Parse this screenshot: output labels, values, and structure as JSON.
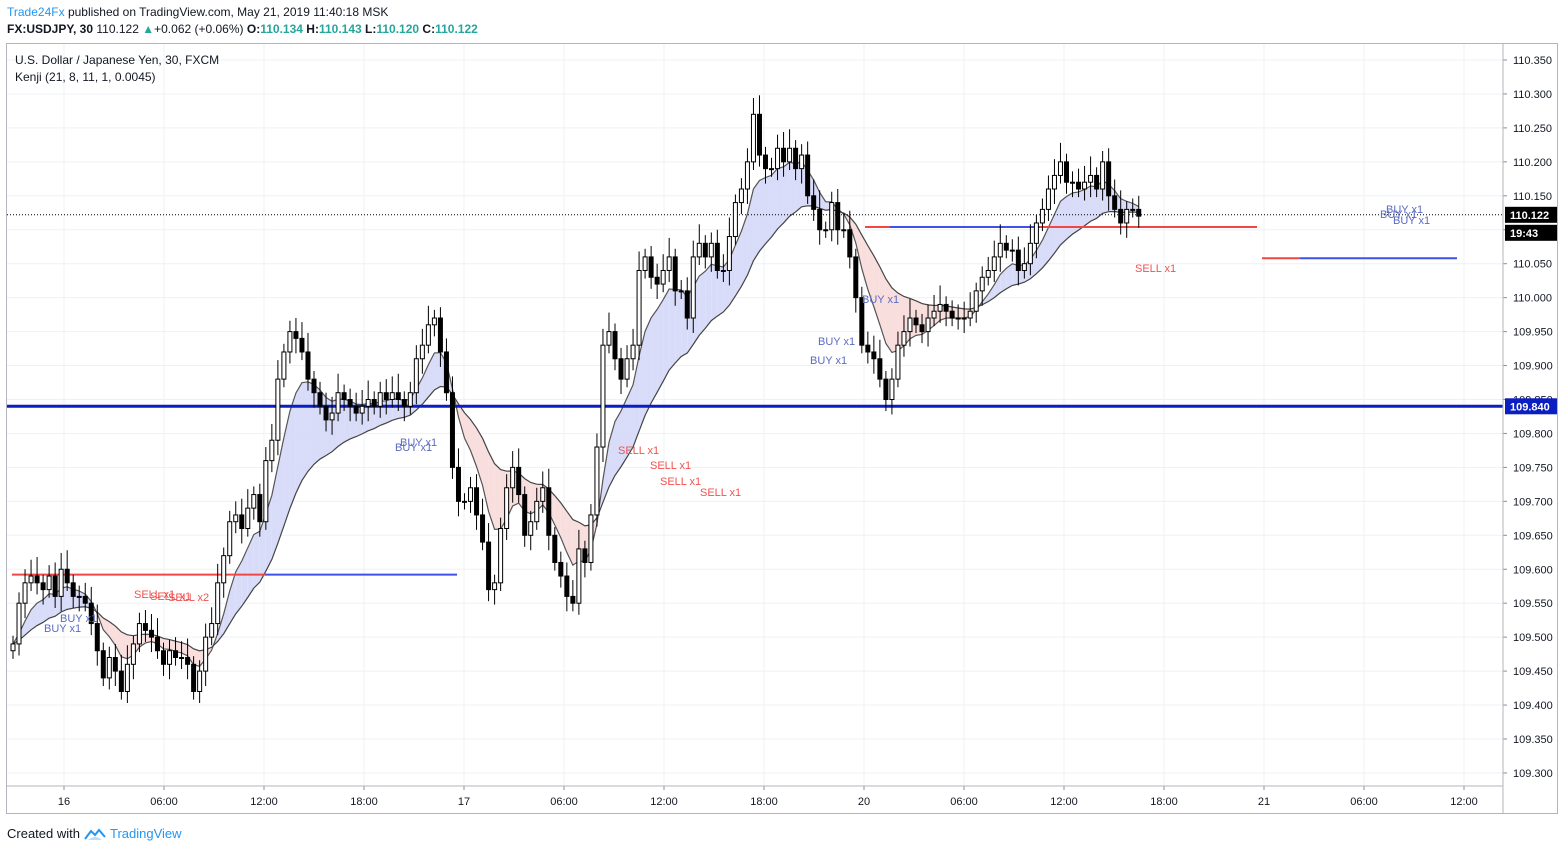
{
  "header": {
    "publisher": "Trade24Fx",
    "published_text": "published on TradingView.com, May 21, 2019 11:40:18 MSK",
    "symbol": "FX:USDJPY, 30",
    "last": "110.122",
    "change": "+0.062 (+0.06%)",
    "open_label": "O:",
    "open": "110.134",
    "high_label": "H:",
    "high": "110.143",
    "low_label": "L:",
    "low": "110.120",
    "close_label": "C:",
    "close": "110.122"
  },
  "legend": {
    "title": "U.S. Dollar / Japanese Yen, 30, FXCM",
    "indicator": "Kenji (21, 8, 11, 1, 0.0045)"
  },
  "price_axis": {
    "ticks": [
      "110.350",
      "110.300",
      "110.250",
      "110.200",
      "110.150",
      "110.100",
      "110.050",
      "110.000",
      "109.950",
      "109.900",
      "109.850",
      "109.800",
      "109.750",
      "109.700",
      "109.650",
      "109.600",
      "109.550",
      "109.500",
      "109.450",
      "109.400",
      "109.350",
      "109.300"
    ],
    "last_price_badge": "110.122",
    "countdown_badge": "19:43",
    "level_badge": "109.840"
  },
  "time_axis": {
    "ticks": [
      "16",
      "06:00",
      "12:00",
      "18:00",
      "17",
      "06:00",
      "12:00",
      "18:00",
      "20",
      "06:00",
      "12:00",
      "18:00",
      "21",
      "06:00",
      "12:00"
    ]
  },
  "signals": {
    "buy": [
      "BUY x1",
      "BUY x1",
      "BUY x1",
      "BUY x1",
      "BUY x1",
      "BUY x1",
      "BUY x1",
      "BUY x1",
      "BUY x1",
      "BUY x1"
    ],
    "sell": [
      "SELL x1",
      "SELL x1",
      "SELL x2",
      "SELL x1",
      "SELL x1",
      "SELL x1",
      "SELL x1",
      "SELL x1"
    ]
  },
  "colors": {
    "bull_candle": "#ffffff",
    "bear_candle": "#000000",
    "buy_band": "#d5d8f7",
    "sell_band": "#f8dada",
    "green_band": "#d9f2d9",
    "buy_level": "#3f51e8",
    "sell_level": "#f04646",
    "key_level": "#0b1ec0",
    "buy_text": "#5c6bc0",
    "sell_text": "#ef5350"
  },
  "footer": {
    "created_with": "Created with",
    "brand": "TradingView"
  },
  "chart_data": {
    "type": "candlestick",
    "title": "U.S. Dollar / Japanese Yen, 30, FXCM",
    "ylim": [
      109.28,
      110.38
    ],
    "key_level": 109.84,
    "last_price": 110.122,
    "close_series": [
      109.49,
      109.55,
      109.58,
      109.59,
      109.58,
      109.57,
      109.59,
      109.56,
      109.6,
      109.58,
      109.56,
      109.56,
      109.55,
      109.52,
      109.48,
      109.44,
      109.47,
      109.45,
      109.42,
      109.46,
      109.49,
      109.52,
      109.51,
      109.5,
      109.48,
      109.46,
      109.48,
      109.47,
      109.47,
      109.46,
      109.42,
      109.45,
      109.5,
      109.52,
      109.58,
      109.62,
      109.67,
      109.68,
      109.66,
      109.69,
      109.71,
      109.67,
      109.76,
      109.79,
      109.88,
      109.92,
      109.95,
      109.94,
      109.92,
      109.88,
      109.86,
      109.84,
      109.82,
      109.83,
      109.86,
      109.85,
      109.84,
      109.83,
      109.84,
      109.85,
      109.84,
      109.86,
      109.85,
      109.86,
      109.85,
      109.84,
      109.86,
      109.91,
      109.93,
      109.96,
      109.97,
      109.92,
      109.86,
      109.75,
      109.7,
      109.7,
      109.72,
      109.68,
      109.64,
      109.57,
      109.58,
      109.66,
      109.72,
      109.75,
      109.71,
      109.65,
      109.67,
      109.7,
      109.72,
      109.65,
      109.61,
      109.59,
      109.56,
      109.55,
      109.63,
      109.61,
      109.68,
      109.78,
      109.93,
      109.95,
      109.91,
      109.88,
      109.91,
      109.93,
      110.04,
      110.06,
      110.03,
      110.02,
      110.04,
      110.06,
      110.01,
      110.01,
      109.97,
      110.06,
      110.08,
      110.06,
      110.08,
      110.04,
      110.04,
      110.09,
      110.14,
      110.16,
      110.2,
      110.27,
      110.21,
      110.19,
      110.19,
      110.22,
      110.2,
      110.22,
      110.19,
      110.21,
      110.15,
      110.13,
      110.1,
      110.1,
      110.14,
      110.1,
      110.1,
      110.06,
      110.0,
      109.93,
      109.92,
      109.91,
      109.88,
      109.85,
      109.88,
      109.93,
      109.95,
      109.97,
      109.96,
      109.95,
      109.97,
      109.98,
      109.99,
      109.98,
      109.97,
      109.97,
      109.97,
      109.98,
      110.01,
      110.03,
      110.04,
      110.06,
      110.08,
      110.07,
      110.07,
      110.04,
      110.05,
      110.08,
      110.11,
      110.13,
      110.16,
      110.18,
      110.2,
      110.17,
      110.17,
      110.16,
      110.17,
      110.18,
      110.16,
      110.2,
      110.15,
      110.13,
      110.11,
      110.13,
      110.13,
      110.12
    ]
  }
}
